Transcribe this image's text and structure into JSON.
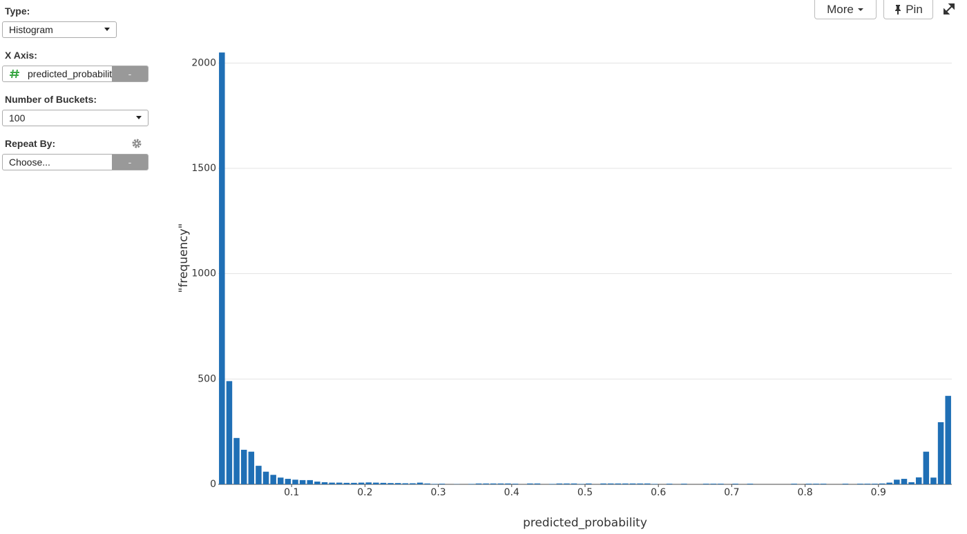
{
  "ui": {
    "type_label": "Type:",
    "type_value": "Histogram",
    "x_axis_label": "X Axis:",
    "x_axis_value": "predicted_probability",
    "x_axis_remove": "-",
    "buckets_label": "Number of Buckets:",
    "buckets_value": "100",
    "repeat_label": "Repeat By:",
    "repeat_value": "Choose...",
    "repeat_remove": "-",
    "more_button": "More",
    "pin_button": "Pin"
  },
  "chart_data": {
    "type": "histogram",
    "xlabel": "predicted_probability",
    "ylabel": "\"frequency\"",
    "color": "#1f6fb5",
    "grid": true,
    "bins": [
      0,
      0.01,
      0.02,
      0.03,
      0.04,
      0.05,
      0.06,
      0.07,
      0.08,
      0.09,
      0.1,
      0.11,
      0.12,
      0.13,
      0.14,
      0.15,
      0.16,
      0.17,
      0.18,
      0.19,
      0.2,
      0.21,
      0.22,
      0.23,
      0.24,
      0.25,
      0.26,
      0.27,
      0.28,
      0.29,
      0.3,
      0.31,
      0.32,
      0.33,
      0.34,
      0.35,
      0.36,
      0.37,
      0.38,
      0.39,
      0.4,
      0.41,
      0.42,
      0.43,
      0.44,
      0.45,
      0.46,
      0.47,
      0.48,
      0.49,
      0.5,
      0.51,
      0.52,
      0.53,
      0.54,
      0.55,
      0.56,
      0.57,
      0.58,
      0.59,
      0.6,
      0.61,
      0.62,
      0.63,
      0.64,
      0.65,
      0.66,
      0.67,
      0.68,
      0.69,
      0.7,
      0.71,
      0.72,
      0.73,
      0.74,
      0.75,
      0.76,
      0.77,
      0.78,
      0.79,
      0.8,
      0.81,
      0.82,
      0.83,
      0.84,
      0.85,
      0.86,
      0.87,
      0.88,
      0.89,
      0.9,
      0.91,
      0.92,
      0.93,
      0.94,
      0.95,
      0.96,
      0.97,
      0.98,
      0.99,
      1
    ],
    "values": [
      2050,
      490,
      220,
      164,
      155,
      88,
      60,
      45,
      32,
      26,
      22,
      20,
      20,
      13,
      10,
      8,
      8,
      7,
      7,
      8,
      9,
      8,
      7,
      6,
      6,
      5,
      5,
      8,
      4,
      2,
      3,
      0,
      1,
      0,
      2,
      4,
      4,
      4,
      4,
      4,
      3,
      0,
      4,
      4,
      0,
      2,
      4,
      4,
      4,
      2,
      4,
      0,
      4,
      4,
      4,
      4,
      4,
      4,
      4,
      2,
      0,
      3,
      0,
      3,
      0,
      0,
      3,
      3,
      3,
      0,
      3,
      0,
      3,
      0,
      0,
      0,
      0,
      0,
      3,
      0,
      3,
      3,
      3,
      0,
      0,
      3,
      0,
      3,
      3,
      3,
      4,
      8,
      22,
      26,
      10,
      33,
      155,
      32,
      295,
      420
    ],
    "xlim": [
      0,
      1
    ],
    "xticks": [
      0.1,
      0.2,
      0.3,
      0.4,
      0.5,
      0.6,
      0.7,
      0.8,
      0.9
    ],
    "ylim": [
      0,
      2070
    ],
    "yticks": [
      0,
      500,
      1000,
      1500,
      2000
    ]
  }
}
